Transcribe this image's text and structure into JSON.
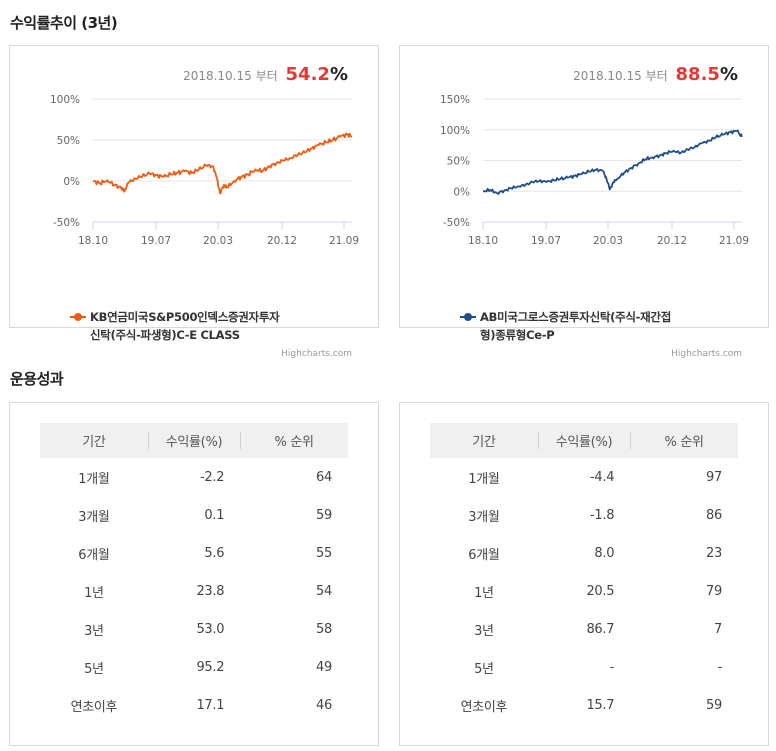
{
  "section1_title": "수익률추이 (3년)",
  "section2_title": "운용성과",
  "chart_data": [
    {
      "type": "line",
      "since_date": "2018.10.15",
      "since_word": "부터",
      "total_return": "54.2",
      "pct_sign": "%",
      "y_ticks": [
        "100%",
        "50%",
        "0%",
        "-50%"
      ],
      "y_tick_values": [
        100,
        50,
        0,
        -50
      ],
      "ylim": [
        -50,
        100
      ],
      "x_ticks": [
        "18.10",
        "19.07",
        "20.03",
        "20.12",
        "21.09"
      ],
      "series_name_lines": [
        "KB연금미국S&P500인덱스증권자투자",
        "신탁(주식-파생형)C-E CLASS"
      ],
      "color": "#f15a0f",
      "credits": "Highcharts.com",
      "points": [
        [
          0,
          0
        ],
        [
          1,
          -3
        ],
        [
          2,
          1
        ],
        [
          3,
          -5
        ],
        [
          4,
          -8
        ],
        [
          4.5,
          -12
        ],
        [
          5,
          -2
        ],
        [
          6,
          3
        ],
        [
          7,
          6
        ],
        [
          8,
          9
        ],
        [
          9,
          7
        ],
        [
          10,
          5
        ],
        [
          11,
          8
        ],
        [
          12,
          10
        ],
        [
          13,
          12
        ],
        [
          14,
          10
        ],
        [
          15,
          14
        ],
        [
          16,
          19
        ],
        [
          17,
          18
        ],
        [
          17.5,
          5
        ],
        [
          18,
          -15
        ],
        [
          18.5,
          -5
        ],
        [
          19,
          -8
        ],
        [
          20,
          0
        ],
        [
          21,
          5
        ],
        [
          22,
          8
        ],
        [
          23,
          14
        ],
        [
          24,
          12
        ],
        [
          25,
          18
        ],
        [
          26,
          22
        ],
        [
          27,
          25
        ],
        [
          28,
          28
        ],
        [
          29,
          32
        ],
        [
          30,
          35
        ],
        [
          31,
          40
        ],
        [
          32,
          44
        ],
        [
          33,
          47
        ],
        [
          34,
          50
        ],
        [
          35,
          54
        ],
        [
          36,
          57
        ],
        [
          36.7,
          54.2
        ]
      ]
    },
    {
      "type": "line",
      "since_date": "2018.10.15",
      "since_word": "부터",
      "total_return": "88.5",
      "pct_sign": "%",
      "y_ticks": [
        "150%",
        "100%",
        "50%",
        "0%",
        "-50%"
      ],
      "y_tick_values": [
        150,
        100,
        50,
        0,
        -50
      ],
      "ylim": [
        -50,
        150
      ],
      "x_ticks": [
        "18.10",
        "19.07",
        "20.03",
        "20.12",
        "21.09"
      ],
      "series_name_lines": [
        "AB미국그로스증권투자신탁(주식-재간접",
        "형)종류형Ce-P"
      ],
      "color": "#1f4e8c",
      "credits": "Highcharts.com",
      "points": [
        [
          0,
          0
        ],
        [
          1,
          2
        ],
        [
          2,
          -3
        ],
        [
          3,
          1
        ],
        [
          4,
          5
        ],
        [
          5,
          8
        ],
        [
          6,
          10
        ],
        [
          7,
          15
        ],
        [
          8,
          17
        ],
        [
          9,
          15
        ],
        [
          10,
          18
        ],
        [
          11,
          20
        ],
        [
          12,
          22
        ],
        [
          13,
          25
        ],
        [
          14,
          28
        ],
        [
          15,
          32
        ],
        [
          16,
          35
        ],
        [
          17,
          33
        ],
        [
          17.5,
          20
        ],
        [
          18,
          3
        ],
        [
          18.5,
          15
        ],
        [
          19,
          20
        ],
        [
          20,
          30
        ],
        [
          21,
          38
        ],
        [
          22,
          45
        ],
        [
          23,
          52
        ],
        [
          24,
          55
        ],
        [
          25,
          58
        ],
        [
          26,
          62
        ],
        [
          27,
          66
        ],
        [
          28,
          62
        ],
        [
          29,
          68
        ],
        [
          30,
          72
        ],
        [
          31,
          78
        ],
        [
          32,
          82
        ],
        [
          33,
          88
        ],
        [
          34,
          92
        ],
        [
          35,
          96
        ],
        [
          36,
          98
        ],
        [
          36.7,
          88.5
        ]
      ]
    }
  ],
  "x_range": [
    0,
    36.7
  ],
  "tables": [
    {
      "headers": [
        "기간",
        "수익률(%)",
        "% 순위"
      ],
      "rows": [
        {
          "period": "1개월",
          "ret": "-2.2",
          "rank": "64",
          "tone": "neg"
        },
        {
          "period": "3개월",
          "ret": "0.1",
          "rank": "59",
          "tone": "pos"
        },
        {
          "period": "6개월",
          "ret": "5.6",
          "rank": "55",
          "tone": "pos"
        },
        {
          "period": "1년",
          "ret": "23.8",
          "rank": "54",
          "tone": "pos"
        },
        {
          "period": "3년",
          "ret": "53.0",
          "rank": "58",
          "tone": "pos"
        },
        {
          "period": "5년",
          "ret": "95.2",
          "rank": "49",
          "tone": "pos"
        },
        {
          "period": "연초이후",
          "ret": "17.1",
          "rank": "46",
          "tone": "pos"
        }
      ]
    },
    {
      "headers": [
        "기간",
        "수익률(%)",
        "% 순위"
      ],
      "rows": [
        {
          "period": "1개월",
          "ret": "-4.4",
          "rank": "97",
          "tone": "neg"
        },
        {
          "period": "3개월",
          "ret": "-1.8",
          "rank": "86",
          "tone": "neg"
        },
        {
          "period": "6개월",
          "ret": "8.0",
          "rank": "23",
          "tone": "pos"
        },
        {
          "period": "1년",
          "ret": "20.5",
          "rank": "79",
          "tone": "pos"
        },
        {
          "period": "3년",
          "ret": "86.7",
          "rank": "7",
          "tone": "pos"
        },
        {
          "period": "5년",
          "ret": "-",
          "rank": "-",
          "tone": "neu"
        },
        {
          "period": "연초이후",
          "ret": "15.7",
          "rank": "59",
          "tone": "pos"
        }
      ]
    }
  ]
}
